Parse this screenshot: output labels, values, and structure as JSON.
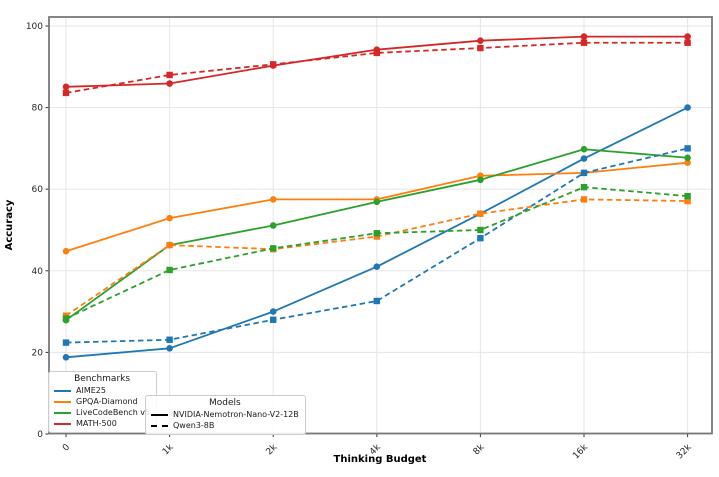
{
  "chart_data": {
    "type": "line",
    "title": "",
    "xlabel": "Thinking Budget",
    "ylabel": "Accuracy",
    "categories": [
      "0",
      "1k",
      "2k",
      "4k",
      "8k",
      "16k",
      "32k"
    ],
    "yticks": [
      0,
      20,
      40,
      60,
      80,
      100
    ],
    "ylim": [
      0,
      102
    ],
    "grid": true,
    "x_tick_rotation": 45,
    "legend_position": "lower left",
    "colors": {
      "AIME25": "#1f77b4",
      "GPQA-Diamond": "#ff7f0e",
      "LiveCodeBench v5": "#2ca02c",
      "MATH-500": "#d62728"
    },
    "series": [
      {
        "benchmark": "AIME25",
        "model": "NVIDIA-Nemotron-Nano-V2-12B",
        "color": "#1f77b4",
        "line_style": "solid",
        "marker": "circle",
        "values": [
          18.8,
          21.0,
          30.0,
          41.0,
          54.0,
          67.5,
          80.0
        ]
      },
      {
        "benchmark": "GPQA-Diamond",
        "model": "NVIDIA-Nemotron-Nano-V2-12B",
        "color": "#ff7f0e",
        "line_style": "solid",
        "marker": "circle",
        "values": [
          44.8,
          52.9,
          57.5,
          57.5,
          63.3,
          64.0,
          66.5
        ]
      },
      {
        "benchmark": "LiveCodeBench v5",
        "model": "NVIDIA-Nemotron-Nano-V2-12B",
        "color": "#2ca02c",
        "line_style": "solid",
        "marker": "circle",
        "values": [
          27.9,
          46.3,
          51.1,
          56.9,
          62.3,
          69.8,
          67.7
        ]
      },
      {
        "benchmark": "MATH-500",
        "model": "NVIDIA-Nemotron-Nano-V2-12B",
        "color": "#d62728",
        "line_style": "solid",
        "marker": "circle",
        "values": [
          85.1,
          85.9,
          90.3,
          94.2,
          96.4,
          97.4,
          97.4
        ]
      },
      {
        "benchmark": "AIME25",
        "model": "Qwen3-8B",
        "color": "#1f77b4",
        "line_style": "dashed",
        "marker": "square",
        "values": [
          22.4,
          23.1,
          28.0,
          32.6,
          48.0,
          64.0,
          70.0
        ]
      },
      {
        "benchmark": "GPQA-Diamond",
        "model": "Qwen3-8B",
        "color": "#ff7f0e",
        "line_style": "dashed",
        "marker": "square",
        "values": [
          29.0,
          46.3,
          45.3,
          48.4,
          54.0,
          57.5,
          57.1
        ]
      },
      {
        "benchmark": "LiveCodeBench v5",
        "model": "Qwen3-8B",
        "color": "#2ca02c",
        "line_style": "dashed",
        "marker": "square",
        "values": [
          28.3,
          40.2,
          45.5,
          49.2,
          50.0,
          60.5,
          58.3
        ]
      },
      {
        "benchmark": "MATH-500",
        "model": "Qwen3-8B",
        "color": "#d62728",
        "line_style": "dashed",
        "marker": "square",
        "values": [
          83.6,
          88.0,
          90.6,
          93.4,
          94.6,
          95.9,
          95.9
        ]
      }
    ],
    "legends": {
      "benchmarks": {
        "title": "Benchmarks",
        "entries": [
          {
            "label": "AIME25",
            "color": "#1f77b4",
            "line_style": "solid"
          },
          {
            "label": "GPQA-Diamond",
            "color": "#ff7f0e",
            "line_style": "solid"
          },
          {
            "label": "LiveCodeBench v5",
            "color": "#2ca02c",
            "line_style": "solid"
          },
          {
            "label": "MATH-500",
            "color": "#d62728",
            "line_style": "solid"
          }
        ]
      },
      "models": {
        "title": "Models",
        "entries": [
          {
            "label": "NVIDIA-Nemotron-Nano-V2-12B",
            "color": "#000000",
            "line_style": "solid"
          },
          {
            "label": "Qwen3-8B",
            "color": "#000000",
            "line_style": "dashed"
          }
        ]
      }
    }
  }
}
